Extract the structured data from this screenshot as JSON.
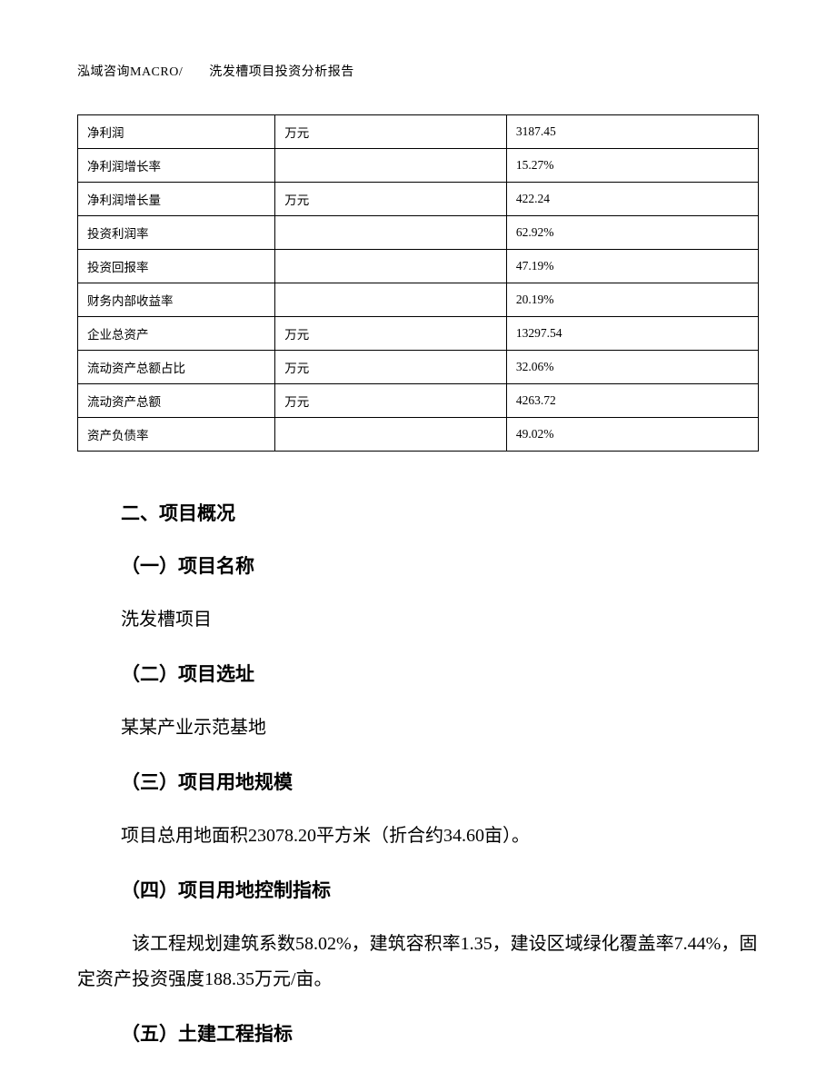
{
  "header": {
    "text": "泓域咨询MACRO/　　洗发槽项目投资分析报告"
  },
  "table": {
    "columns": {
      "label_width": "29%",
      "unit_width": "34%",
      "value_width": "37%"
    },
    "border_color": "#000000",
    "cell_fontsize": 13.5,
    "rows": [
      {
        "label": "净利润",
        "unit": "万元",
        "value": "3187.45"
      },
      {
        "label": "净利润增长率",
        "unit": "",
        "value": "15.27%"
      },
      {
        "label": "净利润增长量",
        "unit": "万元",
        "value": "422.24"
      },
      {
        "label": "投资利润率",
        "unit": "",
        "value": "62.92%"
      },
      {
        "label": "投资回报率",
        "unit": "",
        "value": "47.19%"
      },
      {
        "label": "财务内部收益率",
        "unit": "",
        "value": "20.19%"
      },
      {
        "label": "企业总资产",
        "unit": "万元",
        "value": "13297.54"
      },
      {
        "label": "流动资产总额占比",
        "unit": "万元",
        "value": "32.06%"
      },
      {
        "label": "流动资产总额",
        "unit": "万元",
        "value": "4263.72"
      },
      {
        "label": "资产负债率",
        "unit": "",
        "value": "49.02%"
      }
    ]
  },
  "sections": {
    "main_title": "二、项目概况",
    "items": [
      {
        "title": "（一）项目名称",
        "body": "洗发槽项目"
      },
      {
        "title": "（二）项目选址",
        "body": "某某产业示范基地"
      },
      {
        "title": "（三）项目用地规模",
        "body": "项目总用地面积23078.20平方米（折合约34.60亩）。"
      },
      {
        "title": "（四）项目用地控制指标",
        "body": "该工程规划建筑系数58.02%，建筑容积率1.35，建设区域绿化覆盖率7.44%，固定资产投资强度188.35万元/亩。"
      },
      {
        "title": "（五）土建工程指标",
        "body": ""
      }
    ]
  },
  "typography": {
    "header_fontsize": 14,
    "section_title_fontsize": 21,
    "body_fontsize": 20,
    "body_lineheight": 1.95,
    "title_font_family": "SimHei",
    "body_font_family": "SimSun"
  },
  "colors": {
    "background": "#ffffff",
    "text": "#000000",
    "border": "#000000"
  }
}
